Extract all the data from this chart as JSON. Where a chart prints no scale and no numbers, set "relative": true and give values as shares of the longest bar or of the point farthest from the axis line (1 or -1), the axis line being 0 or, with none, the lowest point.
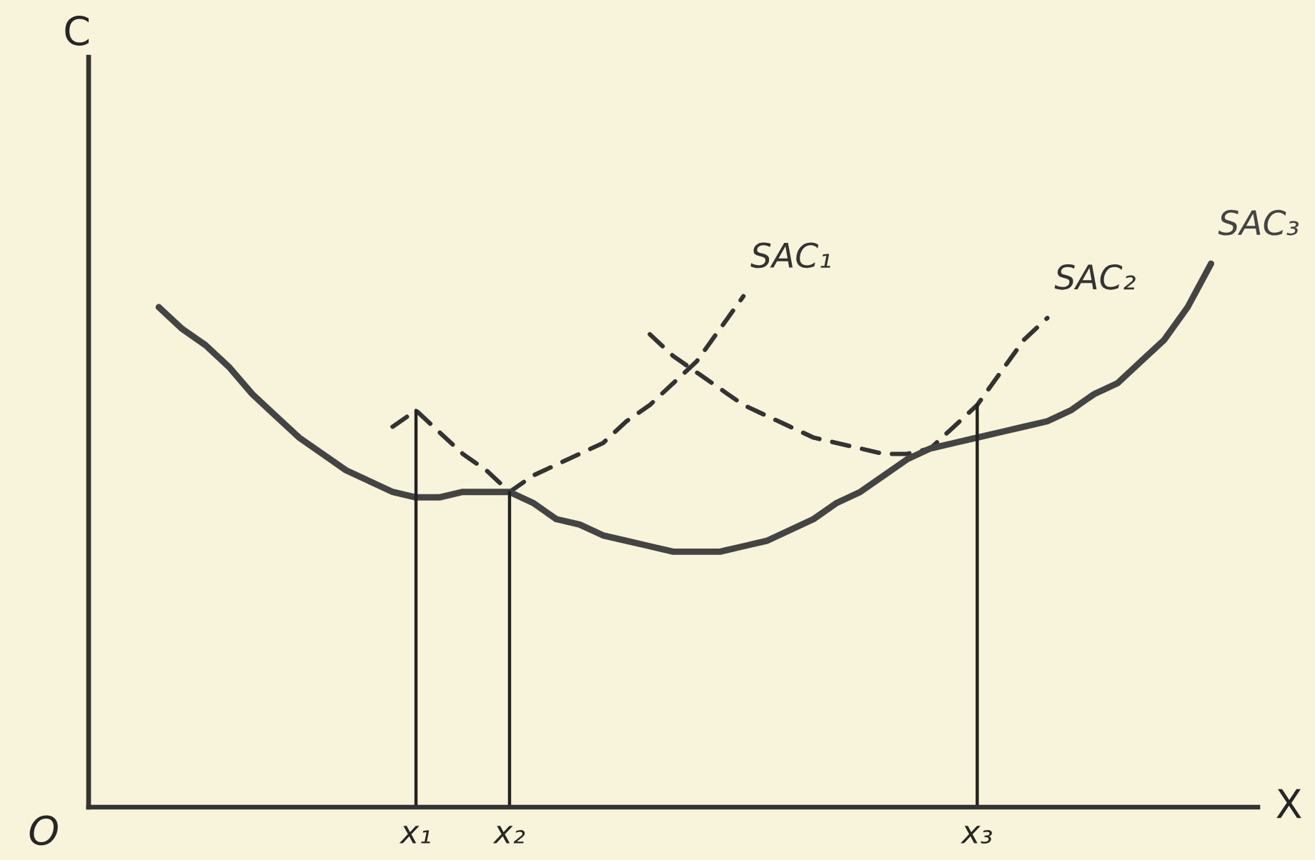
{
  "chart_data": {
    "type": "line",
    "relative": true,
    "xlabel": "X",
    "annotations": [
      "O",
      "C"
    ],
    "legend": false,
    "categories": [
      null,
      null,
      null,
      null,
      null,
      null,
      null,
      null,
      null,
      null,
      null,
      null,
      null,
      null,
      "x₁",
      null,
      null,
      null,
      "x₂",
      null,
      null,
      null,
      null,
      null,
      null,
      null,
      null,
      null,
      null,
      null,
      null,
      null,
      null,
      null,
      null,
      null,
      null,
      null,
      "x₃",
      null,
      null,
      null,
      null,
      null,
      null,
      null,
      null,
      null,
      null,
      null,
      null
    ],
    "ref_lines": [
      {
        "axis": "x",
        "value": "x₁"
      },
      {
        "axis": "x",
        "value": "x₂"
      },
      {
        "axis": "x",
        "value": "x₃"
      }
    ],
    "series": [
      {
        "name": "SAC₁",
        "color": "#333333",
        "line_style": "dashed",
        "values": [
          null,
          null,
          null,
          null,
          null,
          null,
          null,
          null,
          null,
          null,
          null,
          null,
          null,
          0.7,
          0.73,
          0.69,
          0.65,
          0.62,
          0.58,
          0.61,
          0.63,
          0.65,
          0.67,
          0.71,
          0.74,
          0.78,
          0.82,
          0.88,
          0.94,
          null,
          null,
          null,
          null,
          null,
          null,
          null,
          null,
          null,
          null,
          null,
          null,
          null,
          null,
          null,
          null,
          null,
          null,
          null,
          null,
          null,
          null
        ]
      },
      {
        "name": "SAC₂",
        "color": "#333333",
        "line_style": "dashed",
        "values": [
          null,
          null,
          null,
          null,
          null,
          null,
          null,
          null,
          null,
          null,
          null,
          null,
          null,
          null,
          null,
          null,
          null,
          null,
          null,
          null,
          null,
          null,
          null,
          null,
          0.87,
          0.83,
          0.8,
          0.77,
          0.74,
          0.72,
          0.7,
          0.68,
          0.67,
          0.66,
          0.65,
          0.65,
          0.66,
          0.7,
          0.74,
          0.8,
          0.86,
          0.9,
          null,
          null,
          null,
          null,
          null,
          null,
          null,
          null,
          null
        ]
      },
      {
        "name": "SAC₃",
        "color": "#444444",
        "line_style": "solid",
        "values": [
          null,
          null,
          null,
          0.92,
          0.88,
          0.85,
          0.81,
          0.76,
          0.72,
          0.68,
          0.65,
          0.62,
          0.6,
          0.58,
          0.57,
          0.57,
          0.58,
          0.58,
          0.58,
          0.56,
          0.53,
          0.52,
          0.5,
          0.49,
          0.48,
          0.47,
          0.47,
          0.47,
          0.48,
          0.49,
          0.51,
          0.53,
          0.56,
          0.58,
          0.61,
          0.64,
          0.66,
          0.67,
          0.68,
          0.69,
          0.7,
          0.71,
          0.73,
          0.76,
          0.78,
          0.82,
          0.86,
          0.92,
          1,
          null,
          null
        ]
      }
    ]
  }
}
